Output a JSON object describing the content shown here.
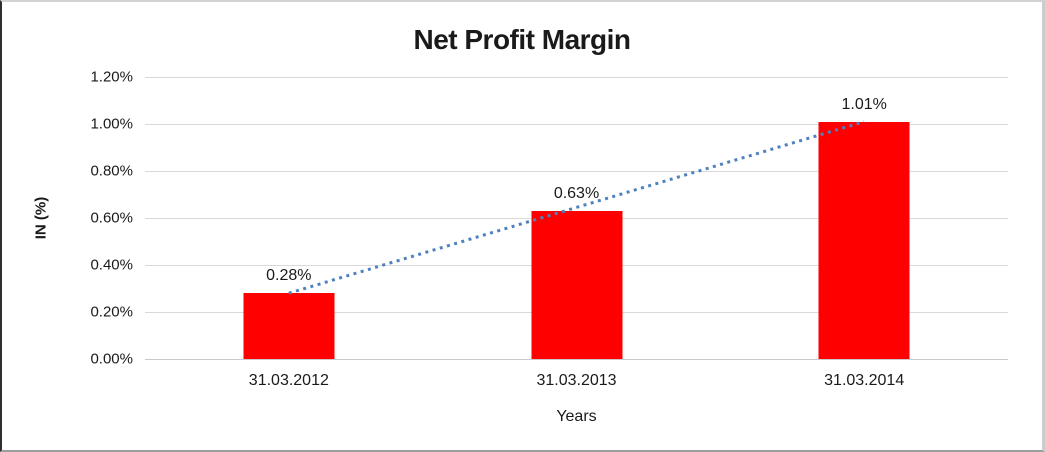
{
  "chart_data": {
    "type": "bar",
    "title": "Net Profit Margin",
    "xlabel": "Years",
    "ylabel": "IN (%)",
    "categories": [
      "31.03.2012",
      "31.03.2013",
      "31.03.2014"
    ],
    "values": [
      0.28,
      0.63,
      1.01
    ],
    "value_labels": [
      "0.28%",
      "0.63%",
      "1.01%"
    ],
    "yticks": [
      "1.20%",
      "1.00%",
      "0.80%",
      "0.60%",
      "0.40%",
      "0.20%",
      "0.00%"
    ],
    "ylim": [
      0,
      1.2
    ],
    "grid": true,
    "legend": "none",
    "bar_color": "#ff0000",
    "gridline_color": "#d9d9d9",
    "trendline": {
      "type": "linear",
      "style": "dotted",
      "color": "#4f81bd",
      "from_value": 0.28,
      "to_value": 1.01
    }
  }
}
